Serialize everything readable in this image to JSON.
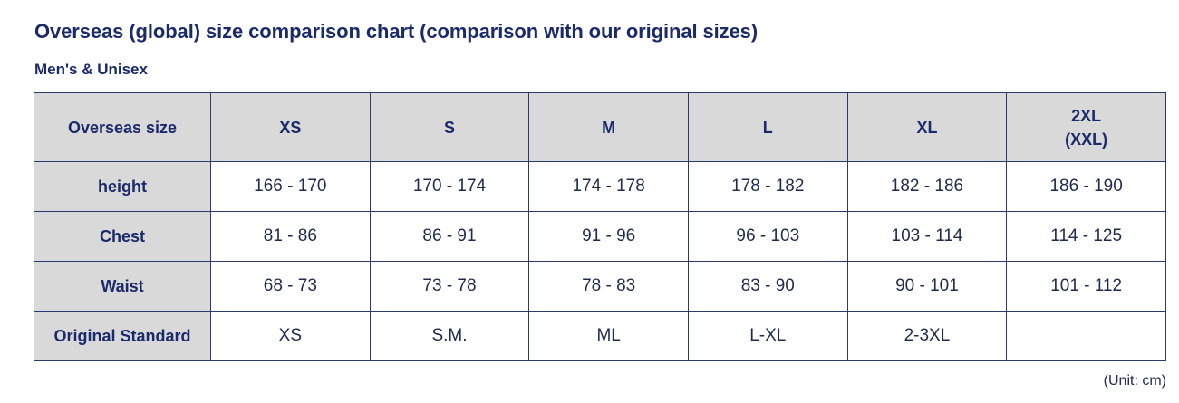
{
  "header": {
    "title": "Overseas (global) size comparison chart (comparison with our original sizes)",
    "subtitle": "Men's & Unisex"
  },
  "table": {
    "header": [
      "Overseas size",
      "XS",
      "S",
      "M",
      "L",
      "XL",
      "2XL\n(XXL)"
    ],
    "rows": [
      [
        "height",
        "166 - 170",
        "170 - 174",
        "174 - 178",
        "178 - 182",
        "182 - 186",
        "186 - 190"
      ],
      [
        "Chest",
        "81 - 86",
        "86 - 91",
        "91 - 96",
        "96 - 103",
        "103 - 114",
        "114 - 125"
      ],
      [
        "Waist",
        "68 - 73",
        "73 - 78",
        "78 - 83",
        "83 - 90",
        "90 - 101",
        "101 - 112"
      ],
      [
        "Original Standard",
        "XS",
        "S.M.",
        "ML",
        "L-XL",
        "2-3XL"
      ]
    ]
  },
  "footnote": "(Unit: cm)"
}
